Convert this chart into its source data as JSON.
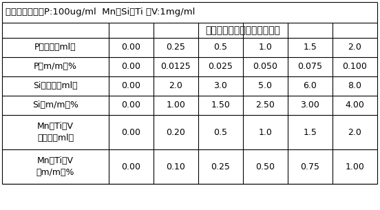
{
  "title_line": "各标液的浓度：P:100ug/ml  Mn、Si、Ti 、V:1mg/ml",
  "subtitle": "标准溶液加入量及对应的含量",
  "rows": [
    {
      "label": "P加入量（ml）",
      "values": [
        "0.00",
        "0.25",
        "0.5",
        "1.0",
        "1.5",
        "2.0"
      ]
    },
    {
      "label": "P（m/m）%",
      "values": [
        "0.00",
        "0.0125",
        "0.025",
        "0.050",
        "0.075",
        "0.100"
      ]
    },
    {
      "label": "Si加入量（ml）",
      "values": [
        "0.00",
        "2.0",
        "3.0",
        "5.0",
        "6.0",
        "8.0"
      ]
    },
    {
      "label": "Si（m/m）%",
      "values": [
        "0.00",
        "1.00",
        "1.50",
        "2.50",
        "3.00",
        "4.00"
      ]
    },
    {
      "label": "Mn、Ti、V\n加入量（ml）",
      "values": [
        "0.00",
        "0.20",
        "0.5",
        "1.0",
        "1.5",
        "2.0"
      ]
    },
    {
      "label": "Mn、Ti、V\n（m/m）%",
      "values": [
        "0.00",
        "0.10",
        "0.25",
        "0.50",
        "0.75",
        "1.00"
      ]
    }
  ],
  "bg_color": "#ffffff",
  "border_color": "#000000",
  "title_font_size": 9.5,
  "subtitle_font_size": 10,
  "data_font_size": 9,
  "label_font_size": 9
}
